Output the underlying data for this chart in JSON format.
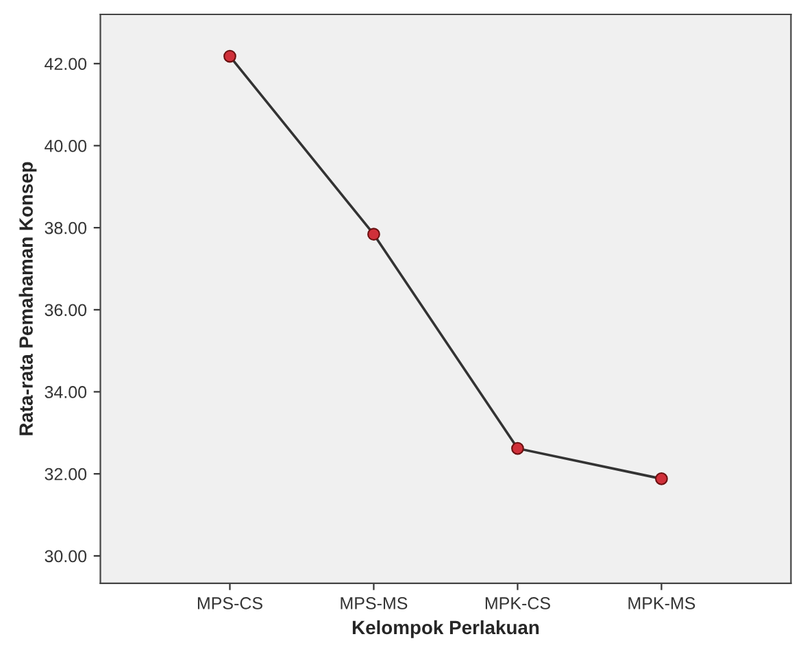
{
  "chart_data": {
    "type": "line",
    "xlabel": "Kelompok Perlakuan",
    "ylabel": "Rata-rata Pemahaman Konsep",
    "categories": [
      "MPS-CS",
      "MPS-MS",
      "MPK-CS",
      "MPK-MS"
    ],
    "series": [
      {
        "color": "#333333",
        "values": [
          42.18,
          37.84,
          32.62,
          31.88
        ]
      }
    ],
    "ylim": [
      29.33,
      43.2
    ],
    "yticks": [
      {
        "value": 30,
        "label": "30.00"
      },
      {
        "value": 32,
        "label": "32.00"
      },
      {
        "value": 34,
        "label": "34.00"
      },
      {
        "value": 36,
        "label": "36.00"
      },
      {
        "value": 38,
        "label": "38.00"
      },
      {
        "value": 40,
        "label": "40.00"
      },
      {
        "value": 42,
        "label": "42.00"
      }
    ],
    "marker": "circle",
    "line_style": "solid",
    "grid": false,
    "legend": false
  }
}
